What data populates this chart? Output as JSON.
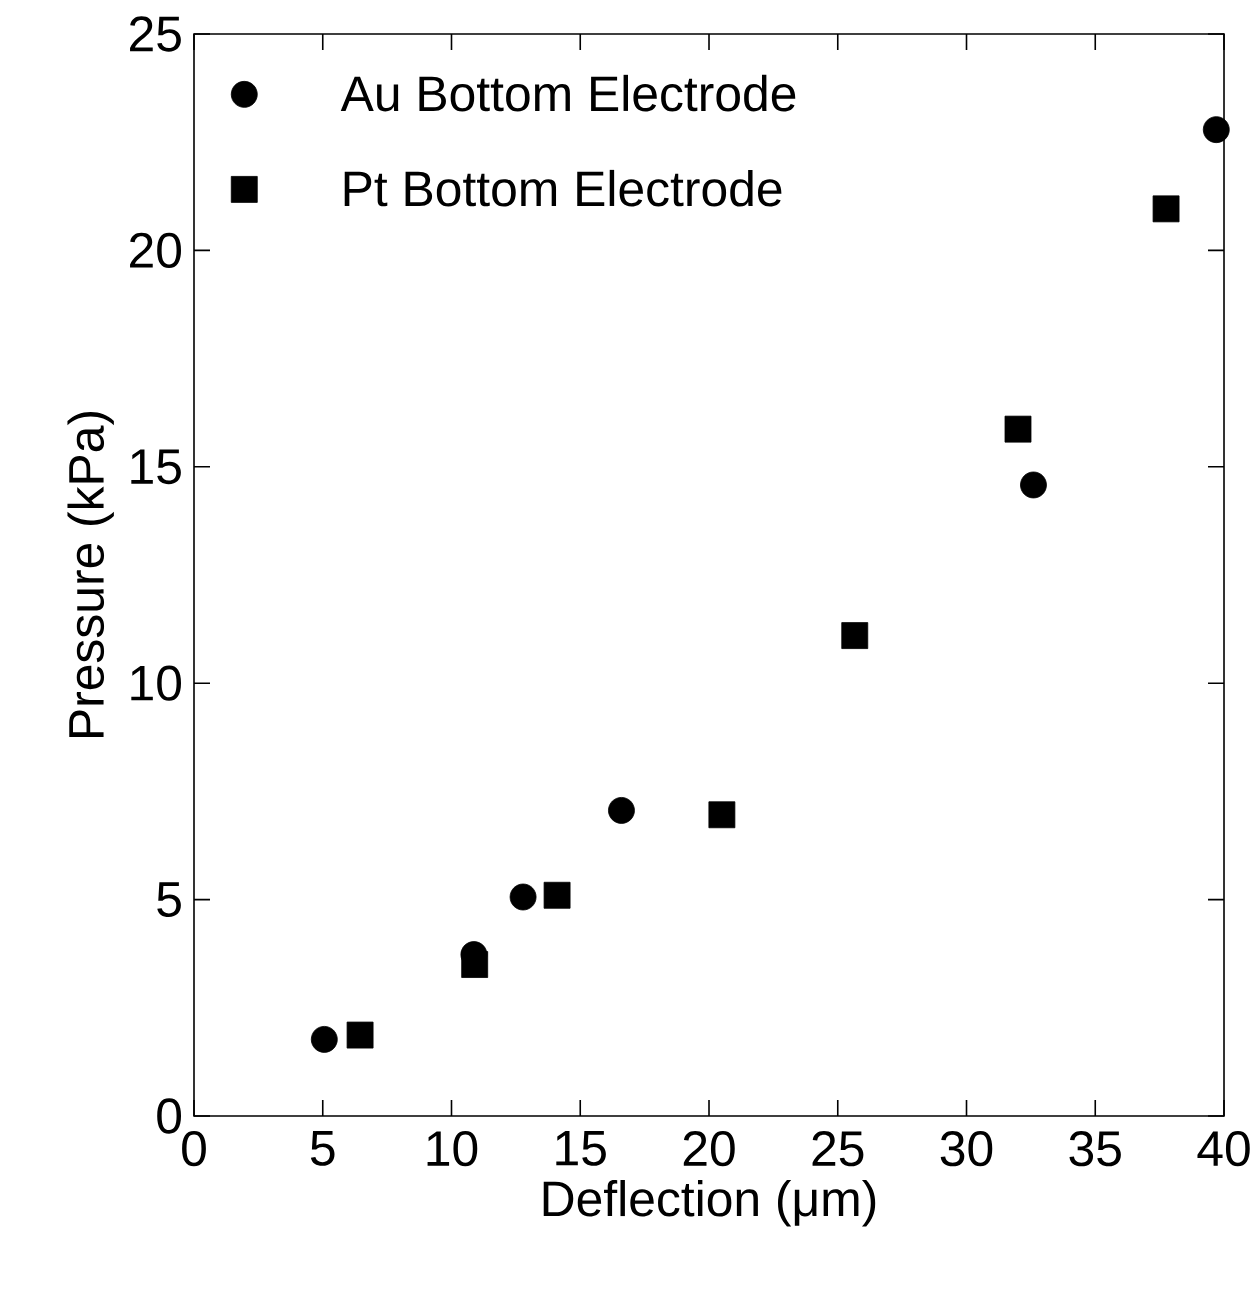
{
  "chart_data": {
    "type": "scatter",
    "xlabel": "Deflection (μm)",
    "ylabel": "Pressure (kPa)",
    "xlim": [
      0,
      40
    ],
    "ylim": [
      0,
      25
    ],
    "xticks": [
      0,
      5,
      10,
      15,
      20,
      25,
      30,
      35,
      40
    ],
    "yticks": [
      0,
      5,
      10,
      15,
      20,
      25
    ],
    "grid": false,
    "legend": "top left",
    "series": [
      {
        "name": "Au Bottom Electrode",
        "color": "#000000",
        "marker": "circle",
        "x": [
          5.06,
          10.87,
          12.78,
          16.6,
          32.6,
          39.7
        ],
        "values": [
          1.77,
          3.73,
          5.06,
          7.06,
          14.58,
          22.79
        ]
      },
      {
        "name": "Pt Bottom Electrode",
        "color": "#000000",
        "marker": "square",
        "x": [
          6.45,
          10.9,
          14.1,
          20.5,
          25.66,
          32.0,
          37.75
        ],
        "values": [
          1.87,
          3.5,
          5.1,
          6.96,
          11.1,
          15.87,
          20.96
        ]
      }
    ]
  }
}
